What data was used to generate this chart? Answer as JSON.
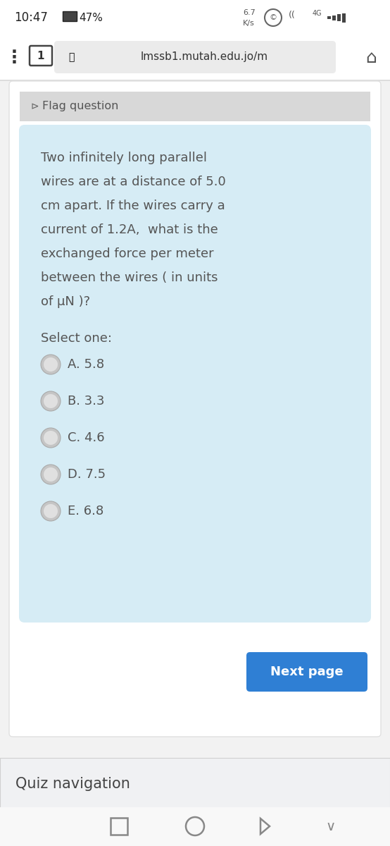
{
  "bg_color": "#f2f2f2",
  "status_bg": "#ffffff",
  "time_text": "10:47",
  "battery_text": "47%",
  "speed_top": "6.7",
  "speed_bot": "K/s",
  "url_bar_text": "lmssb1.mutah.edu.jo/m",
  "url_bar_bg": "#ebebeb",
  "flag_text": "Flag question",
  "flag_bg": "#d8d8d8",
  "question_bg": "#d6ecf5",
  "question_text_line1": "Two infinitely long parallel",
  "question_text_line2": "wires are at a distance of 5.0",
  "question_text_line3": "cm apart. If the wires carry a",
  "question_text_line4": "current of 1.2A,  what is the",
  "question_text_line5": "exchanged force per meter",
  "question_text_line6": "between the wires ( in units",
  "question_text_line7": "of μN )?",
  "select_text": "Select one:",
  "options": [
    "A. 5.8",
    "B. 3.3",
    "C. 4.6",
    "D. 7.5",
    "E. 6.8"
  ],
  "text_color": "#555555",
  "radio_outer": "#c5c5c5",
  "radio_inner": "#e0e0e0",
  "next_btn_bg": "#2f7fd4",
  "next_btn_text": "Next page",
  "outer_card_bg": "#ffffff",
  "quiz_nav_bg": "#f0f1f3",
  "quiz_nav_text": "Quiz navigation",
  "quiz_nav_text_color": "#444444",
  "bottom_bar_bg": "#f8f8f8",
  "nav_icon_color": "#888888"
}
